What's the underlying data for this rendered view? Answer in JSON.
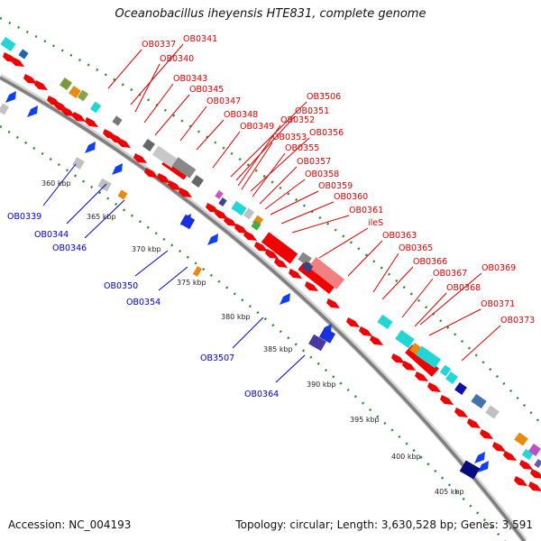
{
  "title": "Oceanobacillus iheyensis HTE831, complete genome",
  "footer": {
    "accession": "Accession: NC_004193",
    "stats": "Topology: circular; Length: 3,630,528 bp; Genes: 3,591"
  },
  "colors": {
    "forward_label": "#e00000",
    "reverse_label": "#0000cc",
    "backbone": "#8c8c8c",
    "ruler_dots": "#2a8a2a"
  },
  "kbp_ticks": [
    "360 kbp",
    "365 kbp",
    "370 kbp",
    "375 kbp",
    "380 kbp",
    "385 kbp",
    "390 kbp",
    "395 kbp",
    "400 kbp",
    "405 kbp"
  ],
  "forward_labels": [
    "OB0337",
    "OB0341",
    "OB0340",
    "OB0343",
    "OB0345",
    "OB0347",
    "OB0348",
    "OB3506",
    "OB0351",
    "OB0352",
    "OB0349",
    "OB0356",
    "OB0353",
    "OB0355",
    "OB0357",
    "OB0358",
    "OB0359",
    "OB0360",
    "OB0361",
    "ileS",
    "OB0363",
    "OB0365",
    "OB0366",
    "OB0369",
    "OB0367",
    "OB0368",
    "OB0371",
    "OB0373"
  ],
  "reverse_labels": [
    "OB0339",
    "OB0344",
    "OB0346",
    "OB0350",
    "OB0354",
    "OB3507",
    "OB0364"
  ]
}
